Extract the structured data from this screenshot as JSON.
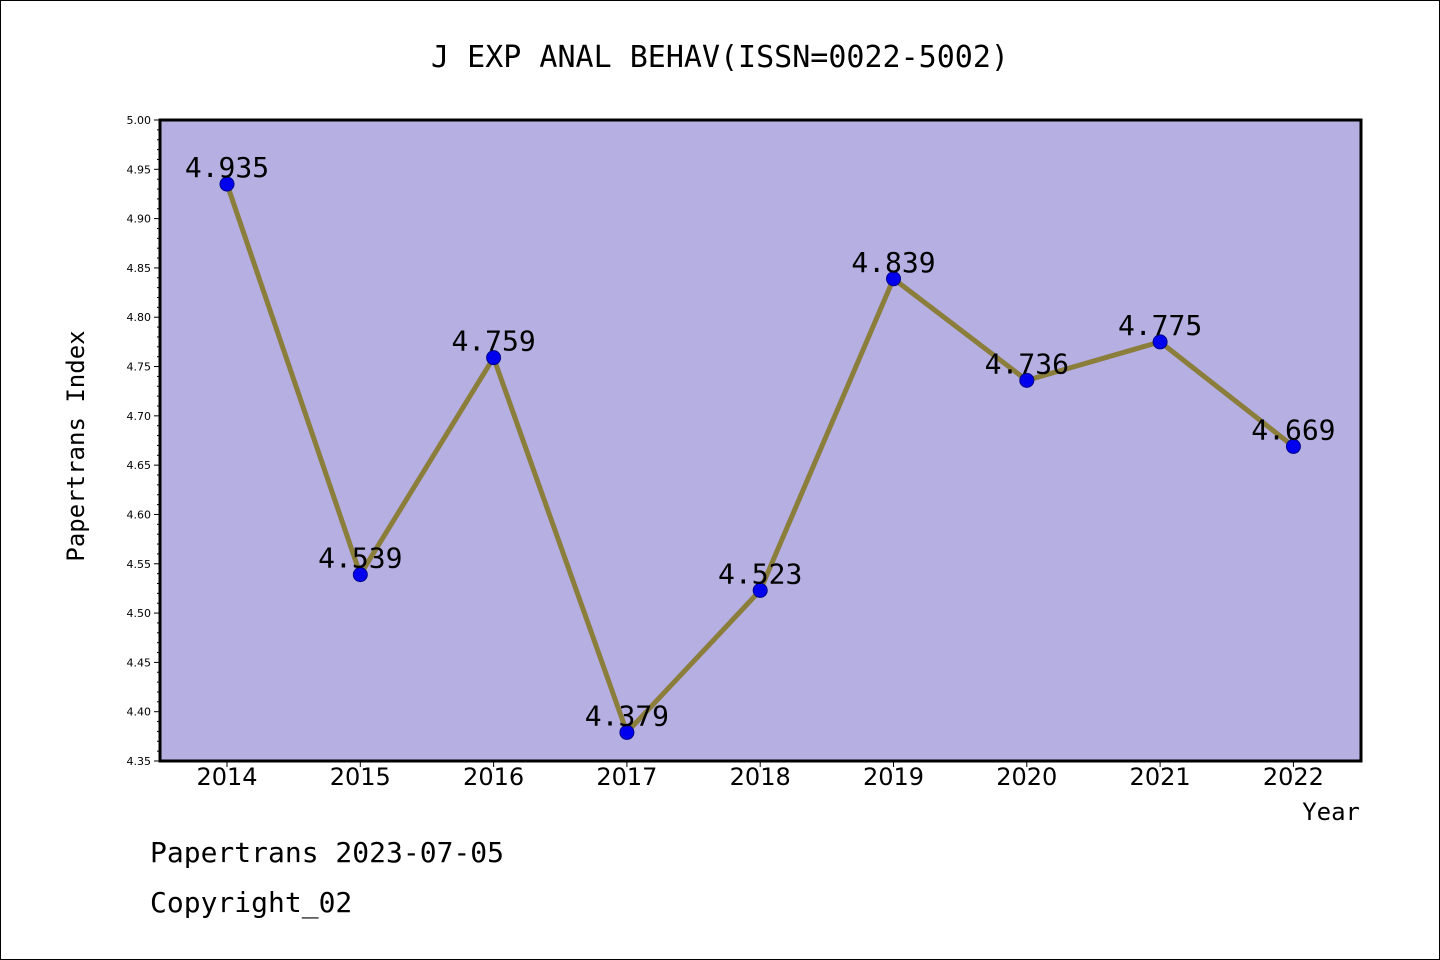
{
  "chart_data": {
    "type": "line",
    "title": "J EXP ANAL BEHAV(ISSN=0022-5002)",
    "xlabel": "Year",
    "ylabel": "Papertrans Index",
    "categories": [
      "2014",
      "2015",
      "2016",
      "2017",
      "2018",
      "2019",
      "2020",
      "2021",
      "2022"
    ],
    "series": [
      {
        "values": [
          4.935,
          4.539,
          4.759,
          4.379,
          4.523,
          4.839,
          4.736,
          4.775,
          4.669
        ],
        "labels": [
          "4.935",
          "4.539",
          "4.759",
          "4.379",
          "4.523",
          "4.839",
          "4.736",
          "4.775",
          "4.669"
        ]
      }
    ],
    "ylim": [
      4.35,
      5.0
    ],
    "yticks": [
      "4.35",
      "4.40",
      "4.45",
      "4.50",
      "4.55",
      "4.60",
      "4.65",
      "4.70",
      "4.75",
      "4.80",
      "4.85",
      "4.90",
      "4.95",
      "5.00"
    ],
    "grid": false,
    "colors": {
      "plot_background": "#b5afe2",
      "line": "#8b7d3a",
      "marker": "#0000ee"
    }
  },
  "footer": {
    "line1": "Papertrans 2023-07-05",
    "line2": "Copyright_02"
  }
}
